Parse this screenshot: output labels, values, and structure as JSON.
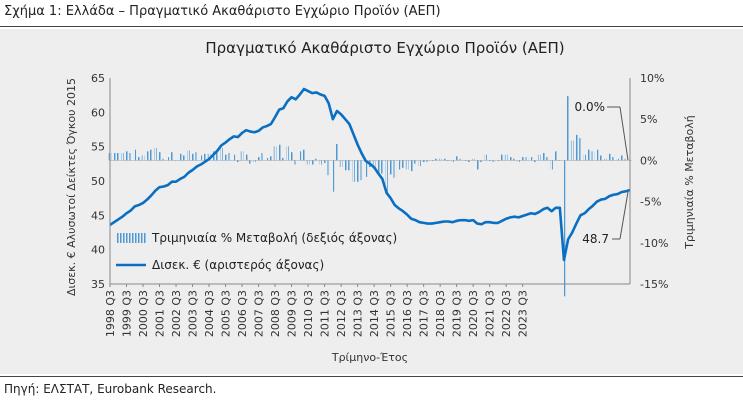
{
  "figure_label": "Σχήμα 1: Ελλάδα – Πραγματικό Ακαθάριστο Εγχώριο Προϊόν (ΑΕΠ)",
  "source": "Πηγή: ΕΛΣΤΑΤ, Eurobank Research.",
  "colors": {
    "line": "#0a6fc2",
    "bars": "#4f98d2",
    "panel": "#eeeeee"
  },
  "chart_data": {
    "type": "line",
    "title": "Πραγματικό Ακαθάριστο Εγχώριο Προϊόν (ΑΕΠ)",
    "xlabel": "Τρίμηνο-Έτος",
    "ylabel_left": "Δισεκ. € Αλυσωτοί Δείκτες Όγκου 2015",
    "ylabel_right": "Τριμηνιαία % Μεταβολή",
    "ylim_left": [
      35,
      65
    ],
    "ylim_right": [
      -15,
      10
    ],
    "yticks_left": [
      "35",
      "40",
      "45",
      "50",
      "55",
      "60",
      "65"
    ],
    "yticks_right": [
      "-15%",
      "-10%",
      "-5%",
      "0%",
      "5%",
      "10%"
    ],
    "xticks": [
      "1998 Q3",
      "1999 Q3",
      "2000 Q3",
      "2001 Q3",
      "2002 Q3",
      "2003 Q3",
      "2004 Q3",
      "2005 Q3",
      "2006 Q3",
      "2007 Q3",
      "2008 Q3",
      "2009 Q3",
      "2010 Q3",
      "2011 Q3",
      "2012 Q3",
      "2013 Q3",
      "2014 Q3",
      "2015 Q3",
      "2016 Q3",
      "2017 Q3",
      "2018 Q3",
      "2019 Q3",
      "2020 Q3",
      "2021 Q3",
      "2022 Q3",
      "2023 Q3"
    ],
    "legend": [
      "Τριμηνιαία % Μεταβολή (δεξιός άξονας)",
      "Δισεκ. € (αριστερός άξονας)"
    ],
    "annotations": {
      "last_change": "0.0%",
      "last_level": "48.7"
    },
    "series": [
      {
        "name": "Δισεκ. € (αριστερός άξονας)",
        "axis": "left",
        "type": "line",
        "values": [
          43.6,
          44.0,
          44.4,
          44.8,
          45.3,
          45.7,
          46.3,
          46.5,
          46.8,
          47.3,
          47.9,
          48.6,
          49.1,
          49.2,
          49.4,
          49.9,
          49.9,
          50.3,
          50.6,
          51.2,
          51.6,
          52.1,
          52.4,
          52.8,
          53.2,
          53.8,
          54.4,
          55.2,
          55.6,
          56.1,
          56.5,
          56.4,
          57.0,
          57.4,
          57.2,
          57.1,
          57.3,
          57.8,
          58.0,
          58.3,
          59.3,
          60.4,
          60.6,
          61.6,
          62.2,
          61.9,
          62.6,
          63.4,
          63.1,
          62.8,
          62.9,
          62.6,
          62.4,
          61.3,
          59.0,
          60.2,
          59.7,
          59.0,
          58.3,
          56.8,
          55.3,
          54.0,
          52.9,
          52.5,
          52.0,
          51.1,
          50.3,
          48.3,
          47.5,
          46.5,
          46.0,
          45.6,
          45.1,
          44.5,
          44.3,
          44.0,
          43.9,
          43.8,
          43.8,
          43.9,
          44.0,
          44.1,
          44.1,
          44.0,
          44.2,
          44.3,
          44.3,
          44.2,
          44.3,
          43.8,
          43.7,
          44.0,
          44.0,
          43.9,
          43.9,
          44.2,
          44.5,
          44.7,
          44.8,
          44.7,
          44.9,
          45.1,
          45.3,
          45.2,
          45.5,
          45.9,
          46.1,
          45.6,
          46.1,
          46.1,
          38.5,
          41.5,
          42.5,
          43.8,
          45.0,
          45.3,
          45.9,
          46.4,
          47.0,
          47.3,
          47.4,
          47.8,
          48.0,
          48.1,
          48.4,
          48.5,
          48.7
        ],
        "last_value": 48.7
      },
      {
        "name": "Τριμηνιαία % Μεταβολή (δεξιός άξονας)",
        "axis": "right",
        "type": "bar",
        "values": [
          0.9,
          0.9,
          0.9,
          0.9,
          1.1,
          0.9,
          1.3,
          0.4,
          0.6,
          1.1,
          1.3,
          1.5,
          1.0,
          0.2,
          0.4,
          1.0,
          0.0,
          0.8,
          0.6,
          1.2,
          0.8,
          1.0,
          0.6,
          0.8,
          0.8,
          1.1,
          1.1,
          1.5,
          0.7,
          0.9,
          0.7,
          -0.2,
          1.1,
          0.7,
          -0.4,
          -0.2,
          0.4,
          0.9,
          0.3,
          0.5,
          1.7,
          1.9,
          0.3,
          1.7,
          1.0,
          -0.5,
          1.1,
          1.3,
          -0.5,
          -0.5,
          0.2,
          -0.5,
          -0.3,
          -1.8,
          -3.8,
          2.0,
          -0.8,
          -1.2,
          -1.2,
          -2.6,
          -2.6,
          -2.4,
          -2.0,
          -0.8,
          -1.0,
          -1.7,
          -1.6,
          -4.0,
          -1.7,
          -2.1,
          -1.1,
          -0.9,
          -1.1,
          -1.3,
          -0.4,
          -0.7,
          -0.2,
          -0.2,
          0.0,
          0.2,
          0.2,
          0.2,
          0.0,
          -0.2,
          0.5,
          0.2,
          0.0,
          -0.2,
          0.2,
          -1.1,
          -0.2,
          0.7,
          0.0,
          -0.2,
          0.0,
          0.7,
          0.7,
          0.4,
          0.2,
          -0.2,
          0.4,
          0.4,
          0.4,
          -0.2,
          0.7,
          0.9,
          0.4,
          -1.1,
          1.1,
          0.0,
          -16.5,
          7.8,
          2.4,
          3.1,
          2.7,
          0.7,
          1.3,
          1.1,
          1.3,
          0.6,
          0.2,
          0.8,
          0.4,
          0.2,
          0.6,
          0.2,
          0.0
        ],
        "last_value": 0.0
      }
    ]
  }
}
